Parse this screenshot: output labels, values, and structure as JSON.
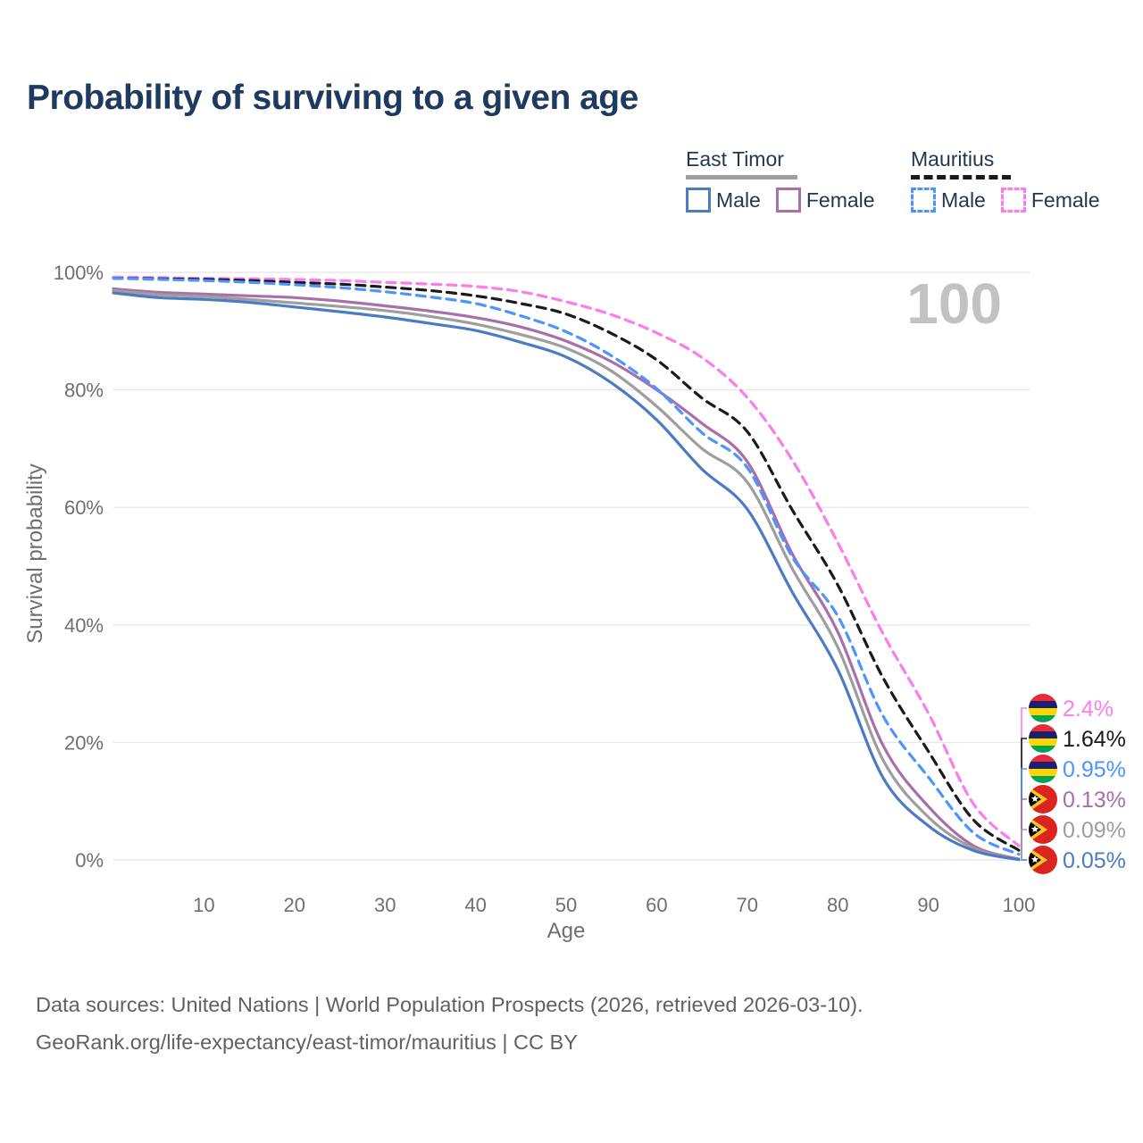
{
  "title": "Probability of surviving to a given age",
  "legend": {
    "groups": [
      {
        "name": "East Timor",
        "style": "solid",
        "underline_color": "#9e9e9e",
        "items": [
          {
            "label": "Male",
            "color": "#4c7bc4"
          },
          {
            "label": "Female",
            "color": "#a86fa8"
          }
        ]
      },
      {
        "name": "Mauritius",
        "style": "dashed",
        "underline_color": "#1a1a1a",
        "items": [
          {
            "label": "Male",
            "color": "#4d94ff"
          },
          {
            "label": "Female",
            "color": "#fa7deb"
          }
        ]
      }
    ]
  },
  "footer": {
    "line1": "Data sources: United Nations | World Population Prospects (2026, retrieved 2026-03-10).",
    "line2": "GeoRank.org/life-expectancy/east-timor/mauritius | CC BY"
  },
  "chart_data": {
    "type": "line",
    "title": "Probability of surviving to a given age",
    "xlabel": "Age",
    "ylabel": "Survival probability",
    "xlim": [
      0,
      100
    ],
    "ylim": [
      0,
      100
    ],
    "x_ticks": [
      10,
      20,
      30,
      40,
      50,
      60,
      70,
      80,
      90,
      100
    ],
    "y_ticks": [
      0,
      20,
      40,
      60,
      80,
      100
    ],
    "grid": "horizontal",
    "legend_position": "top-right",
    "watermark": "100",
    "x": [
      0,
      5,
      10,
      15,
      20,
      25,
      30,
      35,
      40,
      45,
      50,
      55,
      60,
      65,
      70,
      75,
      80,
      85,
      90,
      95,
      100
    ],
    "series": [
      {
        "name": "Mauritius Female",
        "country": "mauritius",
        "sex": "female",
        "color": "#fa7deb",
        "dash": "dashed",
        "end_label": "2.4%",
        "values": [
          99.2,
          99.1,
          99.0,
          98.9,
          98.8,
          98.6,
          98.3,
          98.0,
          97.6,
          96.7,
          95.0,
          92.8,
          89.7,
          85.5,
          78.7,
          68.0,
          54.0,
          38.5,
          25.0,
          9.5,
          2.4
        ]
      },
      {
        "name": "Mauritius",
        "country": "mauritius",
        "sex": "all",
        "color": "#1a1a1a",
        "dash": "dashed",
        "end_label": "1.64%",
        "values": [
          99.0,
          98.9,
          98.8,
          98.6,
          98.3,
          98.0,
          97.5,
          96.9,
          96.0,
          94.7,
          92.9,
          89.6,
          85.1,
          78.6,
          72.9,
          59.5,
          46.8,
          31.0,
          18.5,
          6.8,
          1.64
        ]
      },
      {
        "name": "Mauritius Male",
        "country": "mauritius",
        "sex": "male",
        "color": "#4d94ff",
        "dash": "dashed",
        "end_label": "0.95%",
        "values": [
          99.0,
          98.8,
          98.6,
          98.3,
          97.9,
          97.4,
          96.7,
          95.8,
          94.7,
          92.6,
          89.9,
          85.8,
          80.2,
          72.7,
          66.8,
          51.5,
          41.5,
          24.5,
          14.1,
          4.6,
          0.95
        ]
      },
      {
        "name": "East Timor Female",
        "country": "east-timor",
        "sex": "female",
        "color": "#a86fa8",
        "dash": "solid",
        "end_label": "0.13%",
        "values": [
          97.2,
          96.6,
          96.3,
          96.0,
          95.7,
          95.1,
          94.3,
          93.4,
          92.3,
          90.7,
          88.3,
          84.8,
          80.0,
          74.3,
          67.8,
          52.0,
          38.8,
          19.5,
          9.1,
          2.4,
          0.13
        ]
      },
      {
        "name": "East Timor",
        "country": "east-timor",
        "sex": "all",
        "color": "#9e9e9e",
        "dash": "solid",
        "end_label": "0.09%",
        "values": [
          96.9,
          96.2,
          95.9,
          95.4,
          94.8,
          94.2,
          93.5,
          92.5,
          91.2,
          89.4,
          87.1,
          83.2,
          77.2,
          70.0,
          64.3,
          49.5,
          36.2,
          17.0,
          7.3,
          2.0,
          0.09
        ]
      },
      {
        "name": "East Timor Male",
        "country": "east-timor",
        "sex": "male",
        "color": "#4c7bc4",
        "dash": "solid",
        "end_label": "0.05%",
        "values": [
          96.5,
          95.7,
          95.4,
          94.9,
          94.1,
          93.3,
          92.4,
          91.3,
          90.1,
          88.1,
          85.6,
          81.2,
          74.9,
          66.5,
          59.7,
          45.5,
          32.4,
          14.0,
          5.8,
          1.6,
          0.05
        ]
      }
    ]
  }
}
